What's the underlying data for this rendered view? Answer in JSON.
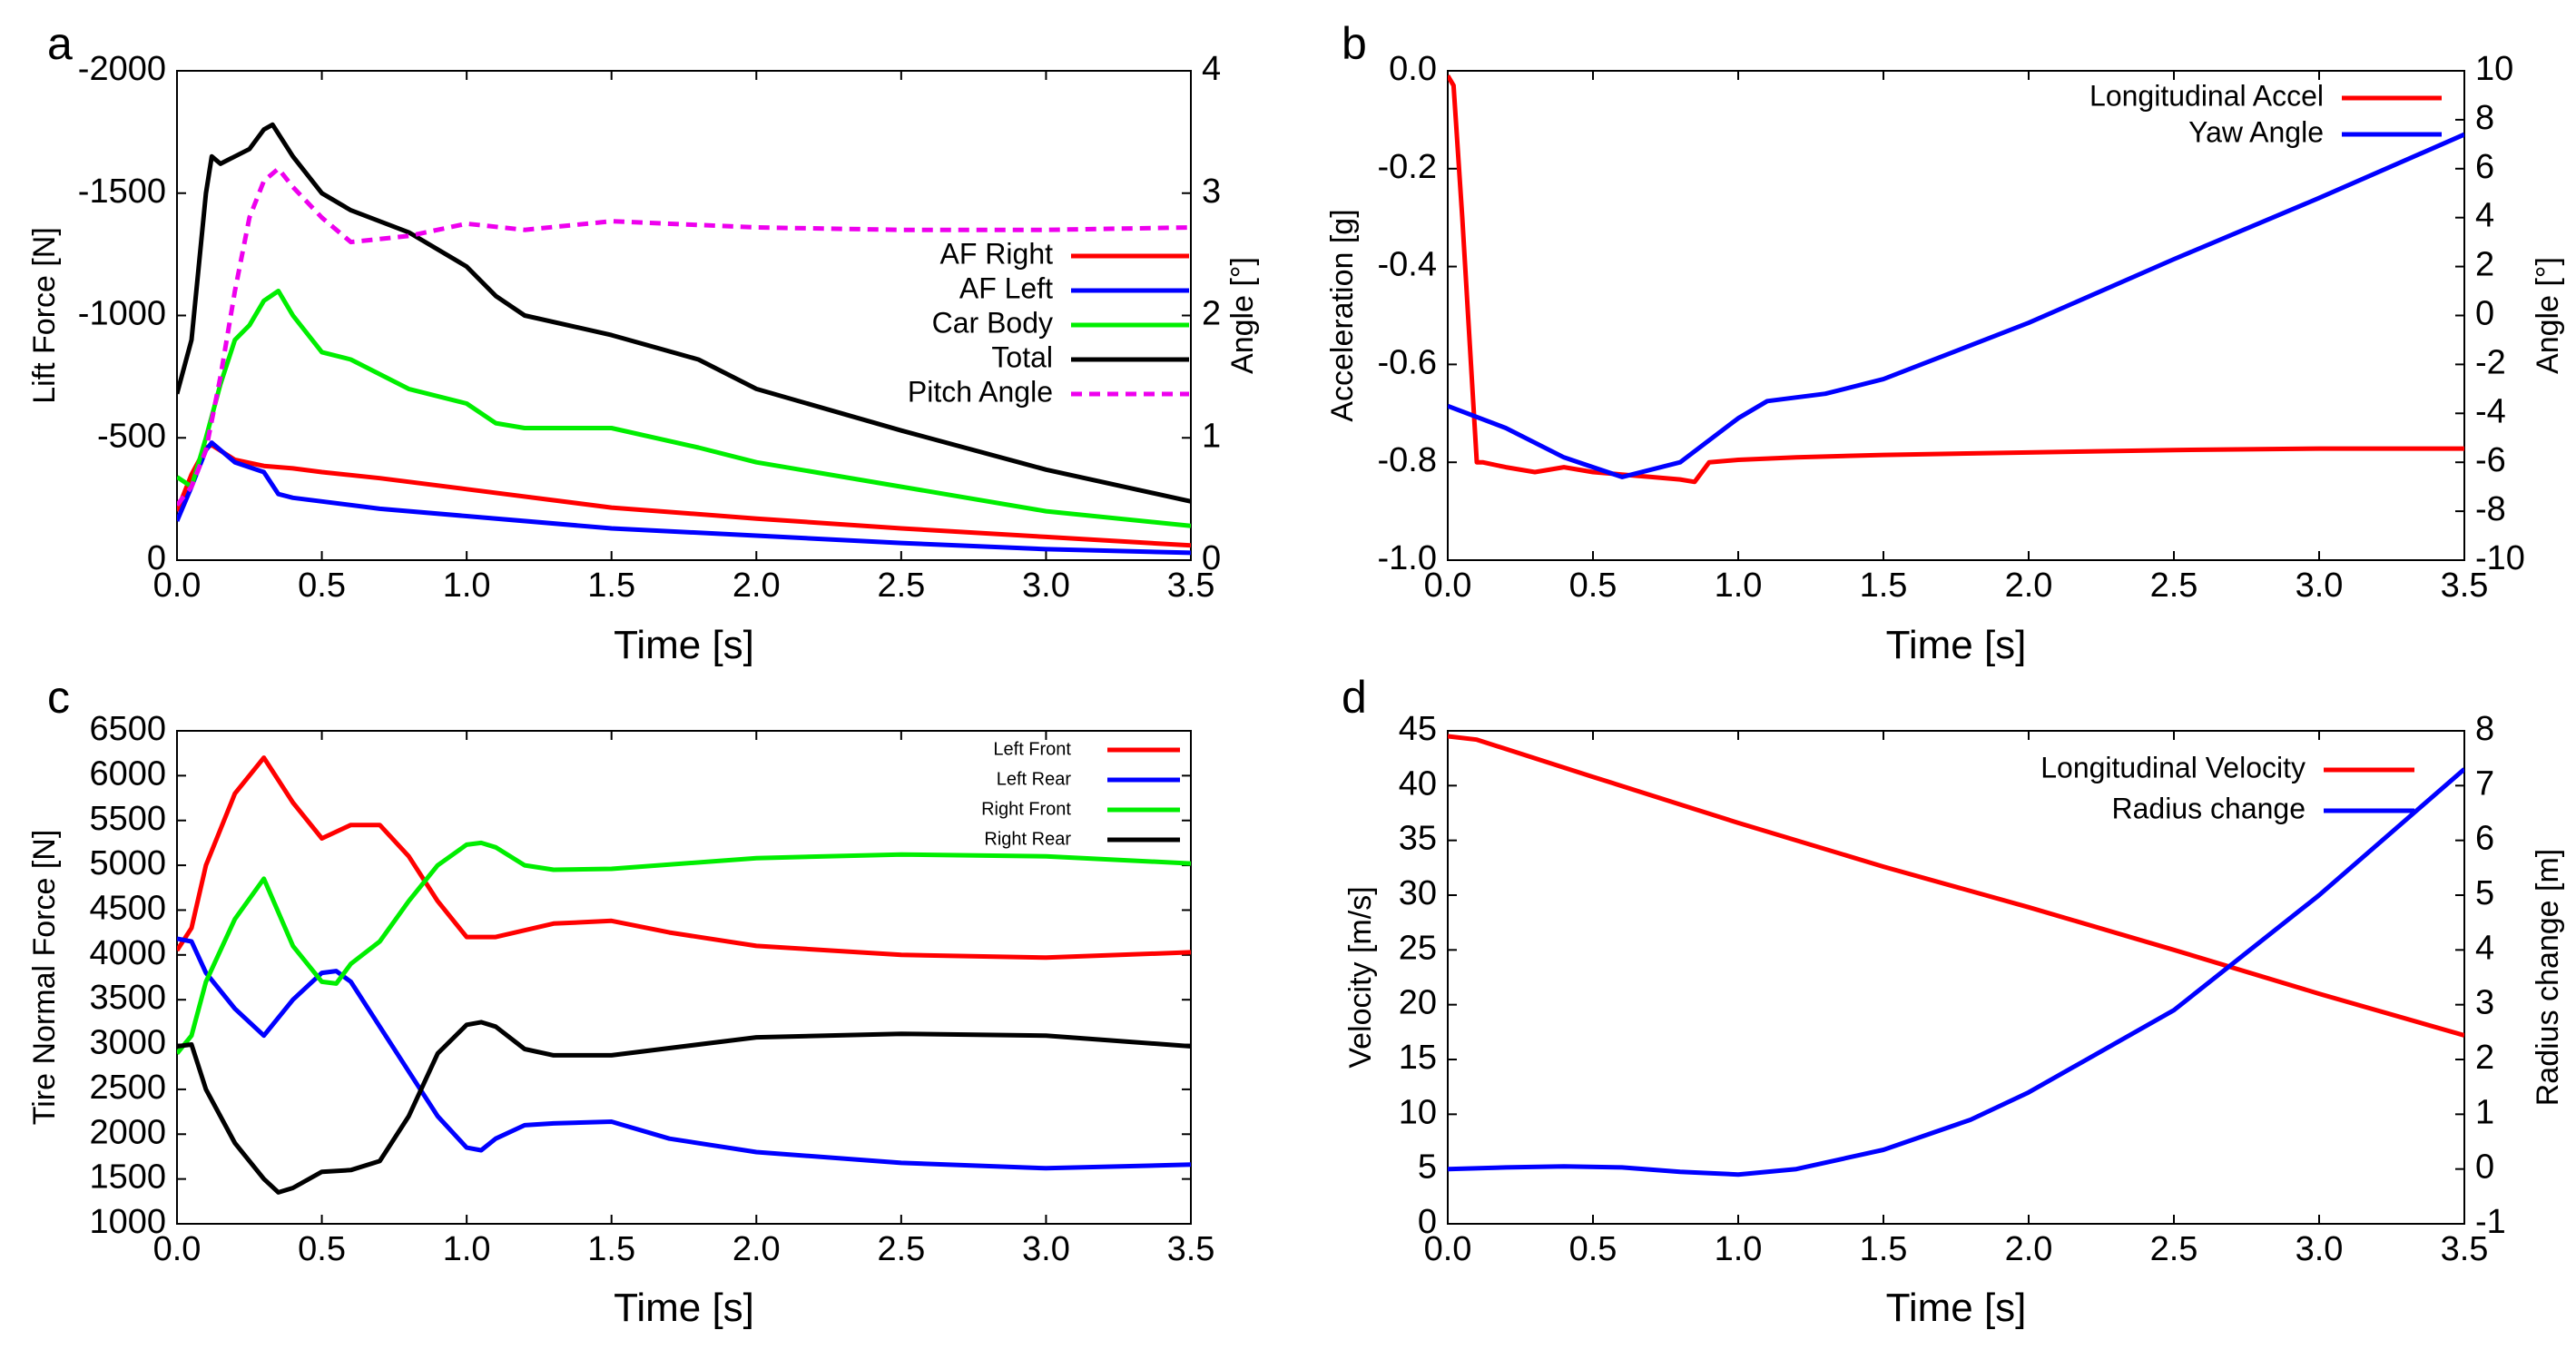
{
  "chart_data": [
    {
      "panel": "a",
      "type": "line",
      "xlabel": "Time [s]",
      "ylabel": "Lift Force [N]",
      "y2label": "Angle [°]",
      "xlim": [
        0,
        3.5
      ],
      "ylim": [
        0,
        -2000
      ],
      "y2lim": [
        0,
        4
      ],
      "xticks": [
        "0.0",
        "0.5",
        "1.0",
        "1.5",
        "2.0",
        "2.5",
        "3.0",
        "3.5"
      ],
      "yticks": [
        "-2000",
        "-1500",
        "-1000",
        "-500",
        "0"
      ],
      "y2ticks": [
        "0",
        "1",
        "2",
        "3",
        "4"
      ],
      "legend_position": "right",
      "series": [
        {
          "name": "AF Right",
          "color": "#ff0000",
          "axis": "left",
          "style": "solid",
          "x": [
            0,
            0.05,
            0.1,
            0.12,
            0.2,
            0.3,
            0.4,
            0.5,
            0.7,
            1.0,
            1.5,
            2.0,
            2.5,
            3.0,
            3.5
          ],
          "values": [
            -200,
            -350,
            -460,
            -470,
            -410,
            -385,
            -375,
            -360,
            -335,
            -290,
            -215,
            -170,
            -130,
            -95,
            -60
          ]
        },
        {
          "name": "AF Left",
          "color": "#0000ff",
          "axis": "left",
          "style": "solid",
          "x": [
            0,
            0.05,
            0.1,
            0.12,
            0.2,
            0.3,
            0.35,
            0.4,
            0.5,
            0.7,
            1.0,
            1.5,
            2.0,
            2.5,
            3.0,
            3.5
          ],
          "values": [
            -160,
            -300,
            -450,
            -480,
            -400,
            -360,
            -270,
            -255,
            -240,
            -210,
            -180,
            -130,
            -100,
            -70,
            -45,
            -30
          ]
        },
        {
          "name": "Car Body",
          "color": "#00ee00",
          "axis": "left",
          "style": "solid",
          "x": [
            0,
            0.05,
            0.1,
            0.15,
            0.2,
            0.25,
            0.3,
            0.35,
            0.4,
            0.5,
            0.6,
            0.8,
            1.0,
            1.1,
            1.2,
            1.5,
            1.8,
            2.0,
            2.5,
            3.0,
            3.5
          ],
          "values": [
            -340,
            -300,
            -500,
            -720,
            -900,
            -960,
            -1060,
            -1100,
            -1000,
            -850,
            -820,
            -700,
            -640,
            -560,
            -540,
            -540,
            -460,
            -400,
            -300,
            -200,
            -140
          ]
        },
        {
          "name": "Total",
          "color": "#000000",
          "axis": "left",
          "style": "solid",
          "x": [
            0,
            0.05,
            0.1,
            0.12,
            0.15,
            0.2,
            0.25,
            0.3,
            0.33,
            0.4,
            0.5,
            0.6,
            0.8,
            1.0,
            1.1,
            1.2,
            1.5,
            1.8,
            2.0,
            2.5,
            3.0,
            3.5
          ],
          "values": [
            -680,
            -900,
            -1500,
            -1650,
            -1620,
            -1650,
            -1680,
            -1760,
            -1780,
            -1650,
            -1500,
            -1430,
            -1340,
            -1200,
            -1080,
            -1000,
            -920,
            -820,
            -700,
            -530,
            -370,
            -240
          ]
        },
        {
          "name": "Pitch Angle",
          "color": "#ee00ee",
          "axis": "right",
          "style": "dashed",
          "x": [
            0,
            0.05,
            0.1,
            0.15,
            0.2,
            0.25,
            0.3,
            0.35,
            0.4,
            0.5,
            0.6,
            0.8,
            1.0,
            1.2,
            1.5,
            2.0,
            2.5,
            3.0,
            3.5
          ],
          "values": [
            0.45,
            0.6,
            0.9,
            1.5,
            2.2,
            2.8,
            3.1,
            3.2,
            3.05,
            2.8,
            2.6,
            2.65,
            2.75,
            2.7,
            2.77,
            2.72,
            2.7,
            2.7,
            2.72
          ]
        }
      ]
    },
    {
      "panel": "b",
      "type": "line",
      "xlabel": "Time [s]",
      "ylabel": "Acceleration [g]",
      "y2label": "Angle [°]",
      "xlim": [
        0,
        3.5
      ],
      "ylim": [
        -1.0,
        0.0
      ],
      "y2lim": [
        -10,
        10
      ],
      "xticks": [
        "0.0",
        "0.5",
        "1.0",
        "1.5",
        "2.0",
        "2.5",
        "3.0",
        "3.5"
      ],
      "yticks": [
        "0.0",
        "-0.2",
        "-0.4",
        "-0.6",
        "-0.8",
        "-1.0"
      ],
      "y2ticks": [
        "10",
        "8",
        "6",
        "4",
        "2",
        "0",
        "-2",
        "-4",
        "-6",
        "-8",
        "-10"
      ],
      "legend_position": "top-right",
      "series": [
        {
          "name": "Longitudinal Accel",
          "color": "#ff0000",
          "axis": "left",
          "style": "solid",
          "x": [
            0,
            0.02,
            0.05,
            0.08,
            0.1,
            0.12,
            0.2,
            0.3,
            0.4,
            0.5,
            0.6,
            0.7,
            0.8,
            0.85,
            0.9,
            1.0,
            1.2,
            1.5,
            2.0,
            2.5,
            3.0,
            3.5
          ],
          "values": [
            -0.01,
            -0.03,
            -0.3,
            -0.6,
            -0.8,
            -0.8,
            -0.81,
            -0.82,
            -0.81,
            -0.82,
            -0.825,
            -0.83,
            -0.835,
            -0.84,
            -0.8,
            -0.795,
            -0.79,
            -0.785,
            -0.78,
            -0.775,
            -0.772,
            -0.772
          ]
        },
        {
          "name": "Yaw Angle",
          "color": "#0000ff",
          "axis": "right",
          "style": "solid",
          "x": [
            0,
            0.2,
            0.4,
            0.6,
            0.8,
            1.0,
            1.1,
            1.3,
            1.5,
            2.0,
            2.5,
            3.0,
            3.5
          ],
          "values": [
            -3.7,
            -4.6,
            -5.8,
            -6.6,
            -6.0,
            -4.2,
            -3.5,
            -3.2,
            -2.6,
            -0.3,
            2.3,
            4.8,
            7.4
          ]
        }
      ]
    },
    {
      "panel": "c",
      "type": "line",
      "xlabel": "Time [s]",
      "ylabel": "Tire Normal Force [N]",
      "xlim": [
        0,
        3.5
      ],
      "ylim": [
        1000,
        6500
      ],
      "xticks": [
        "0.0",
        "0.5",
        "1.0",
        "1.5",
        "2.0",
        "2.5",
        "3.0",
        "3.5"
      ],
      "yticks": [
        "6500",
        "6000",
        "5500",
        "5000",
        "4500",
        "4000",
        "3500",
        "3000",
        "2500",
        "2000",
        "1500",
        "1000"
      ],
      "legend_position": "top-right",
      "series": [
        {
          "name": "Left Front",
          "color": "#ff0000",
          "x": [
            0,
            0.05,
            0.1,
            0.2,
            0.3,
            0.4,
            0.5,
            0.6,
            0.7,
            0.8,
            0.9,
            1.0,
            1.1,
            1.3,
            1.5,
            1.7,
            2.0,
            2.5,
            3.0,
            3.5
          ],
          "values": [
            4050,
            4300,
            5000,
            5800,
            6200,
            5700,
            5300,
            5450,
            5450,
            5100,
            4600,
            4200,
            4200,
            4350,
            4380,
            4250,
            4100,
            4000,
            3970,
            4030
          ]
        },
        {
          "name": "Left Rear",
          "color": "#0000ff",
          "x": [
            0,
            0.05,
            0.1,
            0.2,
            0.3,
            0.4,
            0.5,
            0.55,
            0.6,
            0.7,
            0.8,
            0.9,
            1.0,
            1.05,
            1.1,
            1.2,
            1.3,
            1.5,
            1.7,
            2.0,
            2.5,
            3.0,
            3.5
          ],
          "values": [
            4180,
            4150,
            3800,
            3400,
            3100,
            3500,
            3800,
            3820,
            3700,
            3200,
            2700,
            2200,
            1850,
            1820,
            1950,
            2100,
            2120,
            2140,
            1950,
            1800,
            1680,
            1620,
            1660
          ]
        },
        {
          "name": "Right Front",
          "color": "#00ee00",
          "x": [
            0,
            0.05,
            0.1,
            0.2,
            0.3,
            0.4,
            0.5,
            0.55,
            0.6,
            0.7,
            0.8,
            0.9,
            1.0,
            1.05,
            1.1,
            1.2,
            1.3,
            1.5,
            2.0,
            2.5,
            3.0,
            3.5
          ],
          "values": [
            2900,
            3100,
            3700,
            4400,
            4850,
            4100,
            3700,
            3680,
            3900,
            4150,
            4600,
            5000,
            5230,
            5250,
            5200,
            5000,
            4950,
            4960,
            5080,
            5120,
            5100,
            5020
          ]
        },
        {
          "name": "Right Rear",
          "color": "#000000",
          "x": [
            0,
            0.05,
            0.1,
            0.2,
            0.3,
            0.35,
            0.4,
            0.5,
            0.6,
            0.7,
            0.8,
            0.9,
            1.0,
            1.05,
            1.1,
            1.2,
            1.3,
            1.5,
            2.0,
            2.5,
            3.0,
            3.5
          ],
          "values": [
            2980,
            3000,
            2500,
            1900,
            1500,
            1350,
            1400,
            1580,
            1600,
            1700,
            2200,
            2900,
            3220,
            3250,
            3200,
            2950,
            2880,
            2880,
            3080,
            3120,
            3100,
            2980
          ]
        }
      ]
    },
    {
      "panel": "d",
      "type": "line",
      "xlabel": "Time [s]",
      "ylabel": "Velocity [m/s]",
      "y2label": "Radius change [m]",
      "xlim": [
        0,
        3.5
      ],
      "ylim": [
        0,
        45
      ],
      "y2lim": [
        -1,
        8
      ],
      "xticks": [
        "0.0",
        "0.5",
        "1.0",
        "1.5",
        "2.0",
        "2.5",
        "3.0",
        "3.5"
      ],
      "yticks": [
        "45",
        "40",
        "35",
        "30",
        "25",
        "20",
        "15",
        "10",
        "5",
        "0"
      ],
      "y2ticks": [
        "8",
        "7",
        "6",
        "5",
        "4",
        "3",
        "2",
        "1",
        "0",
        "-1"
      ],
      "legend_position": "top-right",
      "series": [
        {
          "name": "Longitudinal Velocity",
          "color": "#ff0000",
          "axis": "left",
          "x": [
            0,
            0.1,
            0.5,
            1.0,
            1.5,
            2.0,
            2.5,
            3.0,
            3.5
          ],
          "values": [
            44.5,
            44.2,
            40.8,
            36.6,
            32.6,
            28.9,
            25.0,
            21.0,
            17.2
          ]
        },
        {
          "name": "Radius change",
          "color": "#0000ff",
          "axis": "right",
          "x": [
            0,
            0.2,
            0.4,
            0.6,
            0.8,
            1.0,
            1.2,
            1.5,
            1.8,
            2.0,
            2.5,
            3.0,
            3.5
          ],
          "values": [
            0.0,
            0.03,
            0.05,
            0.03,
            -0.05,
            -0.1,
            0.0,
            0.35,
            0.9,
            1.4,
            2.9,
            5.0,
            7.3
          ]
        }
      ]
    }
  ]
}
